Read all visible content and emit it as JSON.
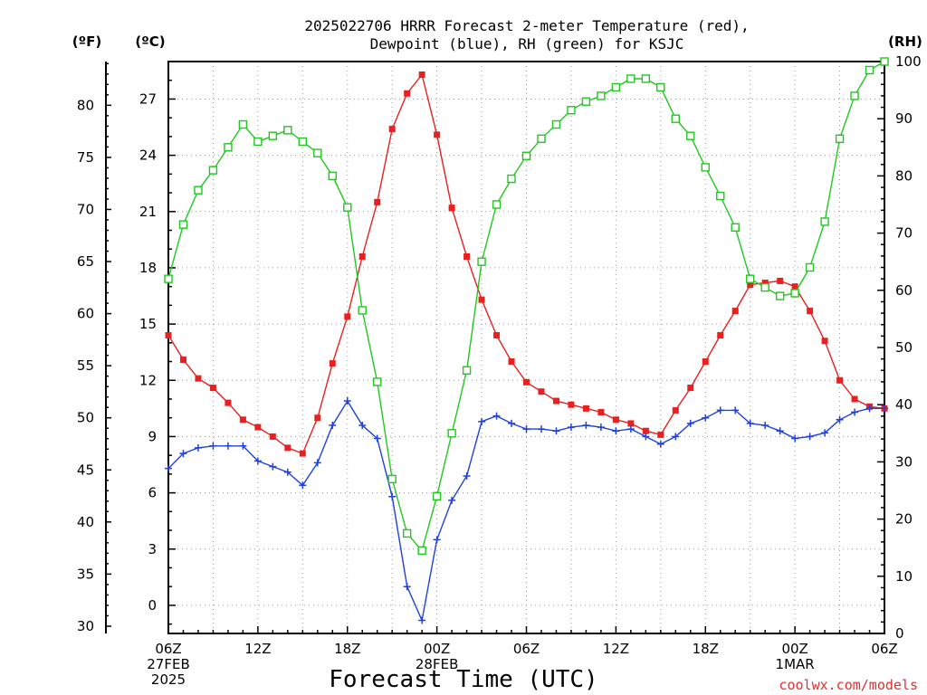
{
  "chart_data": {
    "type": "line",
    "title_line1": "2025022706 HRRR Forecast 2-meter Temperature (red),",
    "title_line2": "Dewpoint (blue), RH (green) for KSJC",
    "xlabel": "Forecast Time (UTC)",
    "credit": "coolwx.com/models",
    "credit_color": "#e03030",
    "left_unit_f": "(ºF)",
    "left_unit_c": "(ºC)",
    "right_unit": "(RH)",
    "x_start": "2025-02-27 06Z",
    "x_end": "2025-03-01 06Z",
    "x_step_hours": 1,
    "x_range_hours": [
      0,
      48
    ],
    "ylim_c": [
      -1.5,
      29
    ],
    "ylim_f": [
      29.3,
      84.2
    ],
    "ylim_rh": [
      0,
      100
    ],
    "yticks_c": [
      0,
      3,
      6,
      9,
      12,
      15,
      18,
      21,
      24,
      27
    ],
    "yticks_f": [
      30,
      35,
      40,
      45,
      50,
      55,
      60,
      65,
      70,
      75,
      80
    ],
    "yticks_rh": [
      0,
      10,
      20,
      30,
      40,
      50,
      60,
      70,
      80,
      90,
      100
    ],
    "xticks": [
      {
        "h": 0,
        "lines": [
          "06Z",
          "27FEB",
          "2025"
        ]
      },
      {
        "h": 6,
        "lines": [
          "12Z"
        ]
      },
      {
        "h": 12,
        "lines": [
          "18Z"
        ]
      },
      {
        "h": 18,
        "lines": [
          "00Z",
          "28FEB"
        ]
      },
      {
        "h": 24,
        "lines": [
          "06Z"
        ]
      },
      {
        "h": 30,
        "lines": [
          "12Z"
        ]
      },
      {
        "h": 36,
        "lines": [
          "18Z"
        ]
      },
      {
        "h": 42,
        "lines": [
          "00Z",
          "1MAR"
        ]
      },
      {
        "h": 48,
        "lines": [
          "06Z"
        ]
      }
    ],
    "series": [
      {
        "key": "temperature",
        "axis": "C",
        "color": "#e82020",
        "marker": "filled-square",
        "values": [
          14.4,
          13.1,
          12.1,
          11.6,
          10.8,
          9.9,
          9.5,
          9.0,
          8.4,
          8.1,
          10.0,
          12.9,
          15.4,
          18.6,
          21.5,
          25.4,
          27.3,
          28.3,
          25.1,
          21.2,
          18.6,
          16.3,
          14.4,
          13.0,
          11.9,
          11.4,
          10.9,
          10.7,
          10.5,
          10.3,
          9.9,
          9.7,
          9.3,
          9.1,
          10.4,
          11.6,
          13.0,
          14.4,
          15.7,
          17.1,
          17.2,
          17.3,
          17.0,
          15.7,
          14.1,
          12.0,
          11.0,
          10.6,
          10.5
        ]
      },
      {
        "key": "dewpoint",
        "axis": "C",
        "color": "#2040e0",
        "marker": "plus",
        "values": [
          7.3,
          8.1,
          8.4,
          8.5,
          8.5,
          8.5,
          7.7,
          7.4,
          7.1,
          6.4,
          7.6,
          9.6,
          10.9,
          9.6,
          8.9,
          5.8,
          1.0,
          -0.8,
          3.5,
          5.6,
          6.9,
          9.8,
          10.1,
          9.7,
          9.4,
          9.4,
          9.3,
          9.5,
          9.6,
          9.5,
          9.3,
          9.4,
          9.0,
          8.6,
          9.0,
          9.7,
          10.0,
          10.4,
          10.4,
          9.7,
          9.6,
          9.3,
          8.9,
          9.0,
          9.2,
          9.9,
          10.3,
          10.5,
          10.5
        ]
      },
      {
        "key": "rh",
        "axis": "RH",
        "color": "#20c820",
        "marker": "open-square",
        "values": [
          62,
          71.5,
          77.5,
          81,
          85,
          89,
          86,
          87,
          88,
          86,
          84,
          80,
          74.5,
          56.5,
          44,
          27,
          17.5,
          14.5,
          24,
          35,
          46,
          65,
          75,
          79.5,
          83.5,
          86.5,
          89,
          91.5,
          93,
          94,
          95.5,
          97,
          97,
          95.5,
          90,
          87,
          81.5,
          76.5,
          71,
          62,
          60.5,
          59,
          59.5,
          64,
          72,
          86.5,
          94,
          98.5,
          100
        ]
      }
    ]
  }
}
